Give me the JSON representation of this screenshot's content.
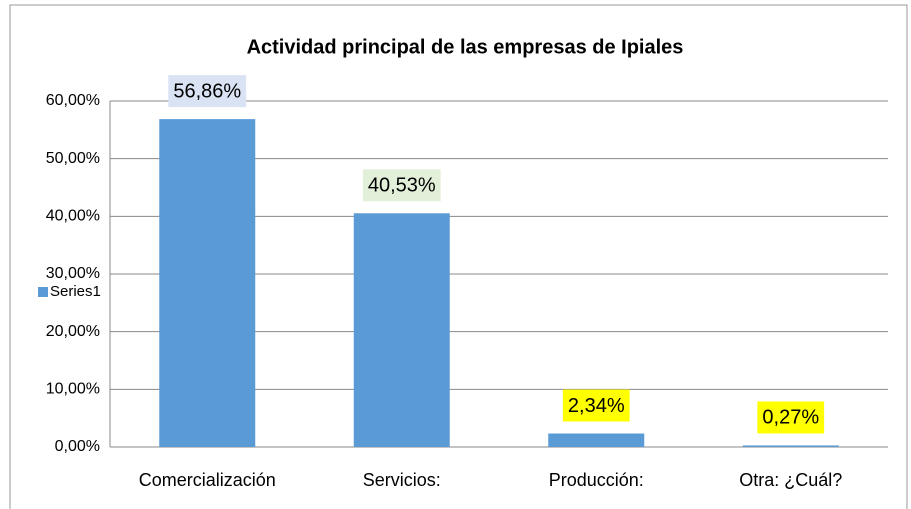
{
  "chart_data": {
    "type": "bar",
    "title": "Actividad principal de las empresas de Ipiales",
    "categories": [
      "Comercialización",
      "Servicios:",
      "Producción:",
      "Otra: ¿Cuál?"
    ],
    "series": [
      {
        "name": "Series1",
        "color": "#5b9bd5",
        "values": [
          56.86,
          40.53,
          2.34,
          0.27
        ],
        "value_labels": [
          "56,86%",
          "40,53%",
          "2,34%",
          "0,27%"
        ],
        "value_label_colors": [
          "#dae3f3",
          "#e2f0d9",
          "#ffff00",
          "#ffff00"
        ]
      }
    ],
    "ylim": [
      0,
      60
    ],
    "yticks": [
      {
        "value": 0,
        "label": "0,00%"
      },
      {
        "value": 10,
        "label": "10,00%"
      },
      {
        "value": 20,
        "label": "20,00%"
      },
      {
        "value": 30,
        "label": "30,00%"
      },
      {
        "value": 40,
        "label": "40,00%"
      },
      {
        "value": 50,
        "label": "50,00%"
      },
      {
        "value": 60,
        "label": "60,00%"
      }
    ],
    "grid": true,
    "legend": "left"
  }
}
